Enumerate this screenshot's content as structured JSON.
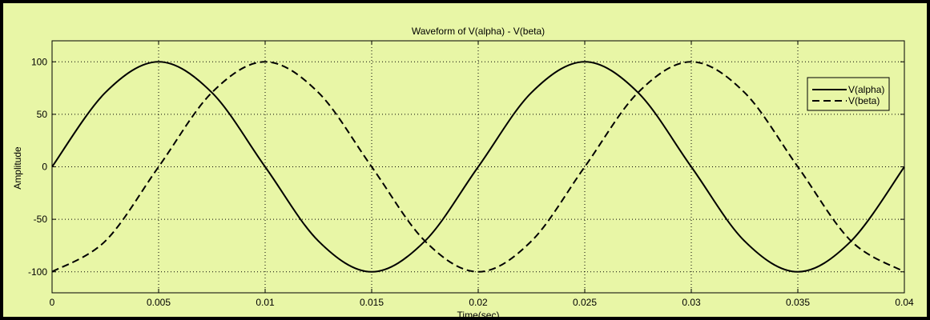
{
  "chart_data": {
    "type": "line",
    "title": "Waveform of V(alpha) - V(beta)",
    "xlabel": "Time(sec)",
    "ylabel": "Amplitude",
    "xlim": [
      0,
      0.04
    ],
    "ylim": [
      -120,
      120
    ],
    "grid": true,
    "legend_position": "top-right",
    "x_ticks": [
      0,
      0.005,
      0.01,
      0.015,
      0.02,
      0.025,
      0.03,
      0.035,
      0.04
    ],
    "x_tick_labels": [
      "0",
      "0.005",
      "0.01",
      "0.015",
      "0.02",
      "0.025",
      "0.03",
      "0.035",
      "0.04"
    ],
    "y_ticks": [
      100,
      50,
      0,
      -50,
      -100
    ],
    "y_tick_labels": [
      "100",
      "50",
      "0",
      "-50",
      "-100"
    ],
    "series": [
      {
        "name": "V(alpha)",
        "style": "solid",
        "x": [
          0,
          0.0025,
          0.005,
          0.0075,
          0.01,
          0.0125,
          0.015,
          0.0175,
          0.02,
          0.0225,
          0.025,
          0.0275,
          0.03,
          0.0325,
          0.035,
          0.0375,
          0.04
        ],
        "values": [
          0,
          70.7,
          100,
          70.7,
          0,
          -70.7,
          -100,
          -70.7,
          0,
          70.7,
          100,
          70.7,
          0,
          -70.7,
          -100,
          -70.7,
          0
        ]
      },
      {
        "name": "V(beta)",
        "style": "dashed",
        "x": [
          0,
          0.0025,
          0.005,
          0.0075,
          0.01,
          0.0125,
          0.015,
          0.0175,
          0.02,
          0.0225,
          0.025,
          0.0275,
          0.03,
          0.0325,
          0.035,
          0.0375,
          0.04
        ],
        "values": [
          -100,
          -70.7,
          0,
          70.7,
          100,
          70.7,
          0,
          -70.7,
          -100,
          -70.7,
          0,
          70.7,
          100,
          70.7,
          0,
          -70.7,
          -100
        ]
      }
    ]
  },
  "colors": {
    "background": "#e8f6a6",
    "plot_area": "#e8f6a6",
    "line": "#000000",
    "frame": "#000000"
  }
}
